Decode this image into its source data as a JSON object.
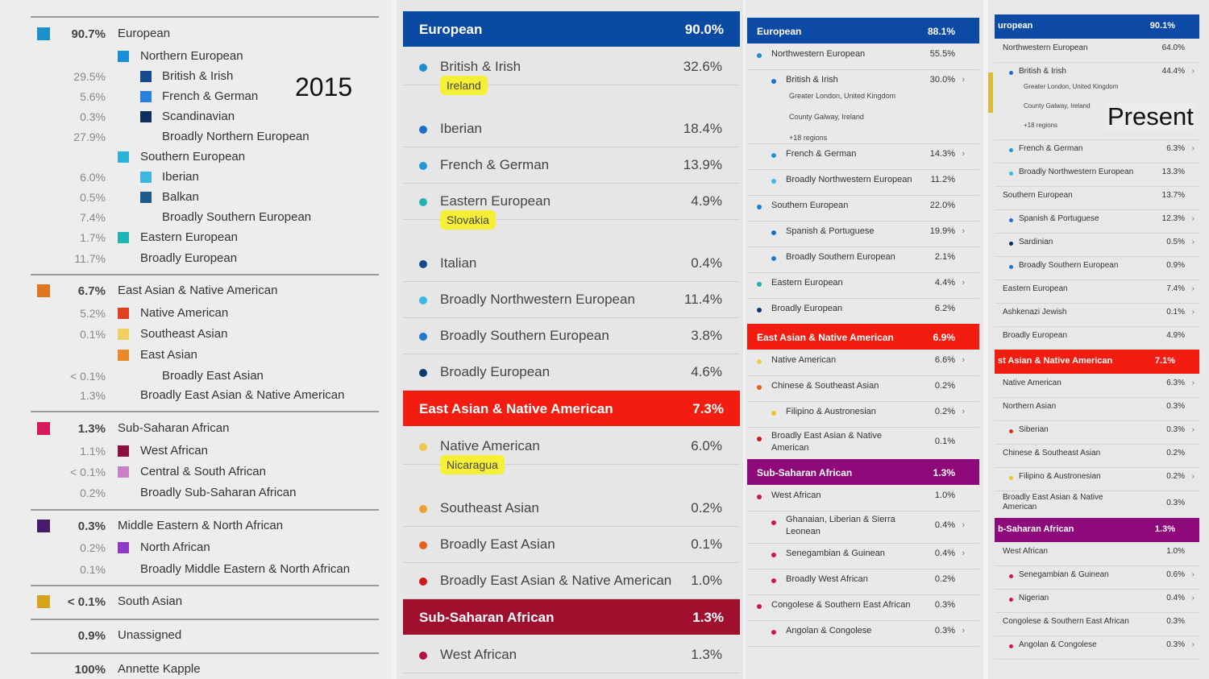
{
  "panel_2015": {
    "year": "2015",
    "rows": [
      {
        "pct": "90.7%",
        "label": "European",
        "color": "#1b93c8",
        "level": 0,
        "bold": true
      },
      {
        "pct": "",
        "label": "Northern European",
        "color": "#1b8fd6",
        "level": 1
      },
      {
        "pct": "29.5%",
        "label": "British & Irish",
        "color": "#174a8c",
        "level": 2
      },
      {
        "pct": "5.6%",
        "label": "French & German",
        "color": "#2a7de1",
        "level": 2
      },
      {
        "pct": "0.3%",
        "label": "Scandinavian",
        "color": "#0e2e5c",
        "level": 2
      },
      {
        "pct": "27.9%",
        "label": "Broadly Northern European",
        "color": "",
        "level": 3
      },
      {
        "pct": "",
        "label": "Southern European",
        "color": "#29b3d9",
        "level": 1
      },
      {
        "pct": "6.0%",
        "label": "Iberian",
        "color": "#3cb8e0",
        "level": 2
      },
      {
        "pct": "0.5%",
        "label": "Balkan",
        "color": "#1c5b8a",
        "level": 2
      },
      {
        "pct": "7.4%",
        "label": "Broadly Southern European",
        "color": "",
        "level": 3
      },
      {
        "pct": "1.7%",
        "label": "Eastern European",
        "color": "#1fb5b5",
        "level": 1
      },
      {
        "pct": "11.7%",
        "label": "Broadly European",
        "color": "",
        "level": 1
      },
      {
        "pct": "6.7%",
        "label": "East Asian & Native American",
        "color": "#e0761f",
        "level": 0,
        "bold": true
      },
      {
        "pct": "5.2%",
        "label": "Native American",
        "color": "#e04020",
        "level": 1
      },
      {
        "pct": "0.1%",
        "label": "Southeast Asian",
        "color": "#f0d060",
        "level": 1
      },
      {
        "pct": "",
        "label": "East Asian",
        "color": "#e88a28",
        "level": 1
      },
      {
        "pct": "< 0.1%",
        "label": "Broadly East Asian",
        "color": "",
        "level": 3
      },
      {
        "pct": "1.3%",
        "label": "Broadly East Asian & Native American",
        "color": "",
        "level": 1
      },
      {
        "pct": "1.3%",
        "label": "Sub-Saharan African",
        "color": "#d6195a",
        "level": 0,
        "bold": true
      },
      {
        "pct": "1.1%",
        "label": "West African",
        "color": "#8a1040",
        "level": 1
      },
      {
        "pct": "< 0.1%",
        "label": "Central & South African",
        "color": "#c880c8",
        "level": 1
      },
      {
        "pct": "0.2%",
        "label": "Broadly Sub-Saharan African",
        "color": "",
        "level": 1
      },
      {
        "pct": "0.3%",
        "label": "Middle Eastern & North African",
        "color": "#4a1a6a",
        "level": 0,
        "bold": true
      },
      {
        "pct": "0.2%",
        "label": "North African",
        "color": "#8e3ac8",
        "level": 1
      },
      {
        "pct": "0.1%",
        "label": "Broadly Middle Eastern & North African",
        "color": "",
        "level": 1
      },
      {
        "pct": "< 0.1%",
        "label": "South Asian",
        "color": "#d6a41c",
        "level": 0,
        "bold": true
      },
      {
        "pct": "0.9%",
        "label": "Unassigned",
        "color": "",
        "level": 0,
        "bold": true
      },
      {
        "pct": "100%",
        "label": "Annette Kapple",
        "color": "",
        "level": 0,
        "bold": true
      }
    ]
  },
  "panel_mid": {
    "items": [
      {
        "kind": "header",
        "label": "European",
        "value": "90.0%",
        "color": "#0b4aa2"
      },
      {
        "kind": "row",
        "label": "British & Irish",
        "value": "32.6%",
        "dot": "#1e8fd0"
      },
      {
        "kind": "highlight",
        "label": "Ireland"
      },
      {
        "kind": "row",
        "label": "Iberian",
        "value": "18.4%",
        "dot": "#1e6fc8"
      },
      {
        "kind": "row",
        "label": "French & German",
        "value": "13.9%",
        "dot": "#1f9ad6"
      },
      {
        "kind": "row",
        "label": "Eastern European",
        "value": "4.9%",
        "dot": "#20b0b0"
      },
      {
        "kind": "highlight",
        "label": "Slovakia"
      },
      {
        "kind": "row",
        "label": "Italian",
        "value": "0.4%",
        "dot": "#164a8c"
      },
      {
        "kind": "row",
        "label": "Broadly Northwestern European",
        "value": "11.4%",
        "dot": "#3ab8e8"
      },
      {
        "kind": "row",
        "label": "Broadly Southern European",
        "value": "3.8%",
        "dot": "#2076d0"
      },
      {
        "kind": "row",
        "label": "Broadly European",
        "value": "4.6%",
        "dot": "#0f3a70"
      },
      {
        "kind": "header",
        "label": "East Asian & Native American",
        "value": "7.3%",
        "color": "#f21c10"
      },
      {
        "kind": "row",
        "label": "Native American",
        "value": "6.0%",
        "dot": "#f0c850"
      },
      {
        "kind": "highlight",
        "label": "Nicaragua"
      },
      {
        "kind": "row",
        "label": "Southeast Asian",
        "value": "0.2%",
        "dot": "#f0a030"
      },
      {
        "kind": "row",
        "label": "Broadly East Asian",
        "value": "0.1%",
        "dot": "#e86020"
      },
      {
        "kind": "row",
        "label": "Broadly East Asian & Native American",
        "value": "1.0%",
        "dot": "#d01818"
      },
      {
        "kind": "header",
        "label": "Sub-Saharan African",
        "value": "1.3%",
        "color": "#a0102e"
      },
      {
        "kind": "row",
        "label": "West African",
        "value": "1.3%",
        "dot": "#b01040"
      }
    ]
  },
  "panel_3": {
    "items": [
      {
        "kind": "header",
        "label": "European",
        "value": "88.1%",
        "color": "#0c4aa6"
      },
      {
        "kind": "row",
        "label": "Northwestern European",
        "value": "55.5%",
        "dot": "#1e8fd0",
        "indent": 1
      },
      {
        "kind": "row",
        "label": "British & Irish",
        "value": "30.0%",
        "dot": "#1e6fc8",
        "indent": 2,
        "chevron": true,
        "subs": [
          "Greater London, United Kingdom",
          "County Galway, Ireland",
          "+18 regions"
        ]
      },
      {
        "kind": "row",
        "label": "French & German",
        "value": "14.3%",
        "dot": "#1f9ad6",
        "indent": 2,
        "chevron": true
      },
      {
        "kind": "row",
        "label": "Broadly Northwestern European",
        "value": "11.2%",
        "dot": "#3ab8e8",
        "indent": 2
      },
      {
        "kind": "row",
        "label": "Southern European",
        "value": "22.0%",
        "dot": "#2080d0",
        "indent": 1
      },
      {
        "kind": "row",
        "label": "Spanish & Portuguese",
        "value": "19.9%",
        "dot": "#1e6fc8",
        "indent": 2,
        "chevron": true
      },
      {
        "kind": "row",
        "label": "Broadly Southern European",
        "value": "2.1%",
        "dot": "#2076d0",
        "indent": 2
      },
      {
        "kind": "row",
        "label": "Eastern European",
        "value": "4.4%",
        "dot": "#20b0b0",
        "indent": 1,
        "chevron": true
      },
      {
        "kind": "row",
        "label": "Broadly European",
        "value": "6.2%",
        "dot": "#0f3a70",
        "indent": 1
      },
      {
        "kind": "header",
        "label": "East Asian & Native American",
        "value": "6.9%",
        "color": "#f21c10"
      },
      {
        "kind": "row",
        "label": "Native American",
        "value": "6.6%",
        "dot": "#f0c850",
        "indent": 1,
        "chevron": true
      },
      {
        "kind": "row",
        "label": "Chinese & Southeast Asian",
        "value": "0.2%",
        "dot": "#e86020",
        "indent": 1
      },
      {
        "kind": "row",
        "label": "Filipino & Austronesian",
        "value": "0.2%",
        "dot": "#f0c030",
        "indent": 2,
        "chevron": true
      },
      {
        "kind": "row",
        "label": "Broadly East Asian & Native American",
        "value": "0.1%",
        "dot": "#d01818",
        "indent": 1,
        "wrap": true
      },
      {
        "kind": "header",
        "label": "Sub-Saharan African",
        "value": "1.3%",
        "color": "#8e0a7a"
      },
      {
        "kind": "row",
        "label": "West African",
        "value": "1.0%",
        "dot": "#d01848",
        "indent": 1
      },
      {
        "kind": "row",
        "label": "Ghanaian, Liberian & Sierra Leonean",
        "value": "0.4%",
        "dot": "#d01848",
        "indent": 2,
        "chevron": true,
        "wrap": true
      },
      {
        "kind": "row",
        "label": "Senegambian & Guinean",
        "value": "0.4%",
        "dot": "#d01848",
        "indent": 2,
        "chevron": true
      },
      {
        "kind": "row",
        "label": "Broadly West African",
        "value": "0.2%",
        "dot": "#d01848",
        "indent": 2
      },
      {
        "kind": "row",
        "label": "Congolese & Southern East African",
        "value": "0.3%",
        "dot": "#d01848",
        "indent": 1
      },
      {
        "kind": "row",
        "label": "Angolan & Congolese",
        "value": "0.3%",
        "dot": "#d01848",
        "indent": 2,
        "chevron": true
      }
    ]
  },
  "panel_4": {
    "label": "Present",
    "items": [
      {
        "kind": "header",
        "label": "uropean",
        "value": "90.1%",
        "color": "#0c4aa6"
      },
      {
        "kind": "row",
        "label": "Northwestern European",
        "value": "64.0%",
        "indent": 1
      },
      {
        "kind": "row",
        "label": "British & Irish",
        "value": "44.4%",
        "dot": "#1e6fc8",
        "indent": 2,
        "chevron": true,
        "subs": [
          "Greater London, United Kingdom",
          "County Galway, Ireland",
          "+18 regions"
        ]
      },
      {
        "kind": "row",
        "label": "French & German",
        "value": "6.3%",
        "dot": "#1f9ad6",
        "indent": 2,
        "chevron": true
      },
      {
        "kind": "row",
        "label": "Broadly Northwestern European",
        "value": "13.3%",
        "dot": "#3ab8e8",
        "indent": 2
      },
      {
        "kind": "row",
        "label": "Southern European",
        "value": "13.7%",
        "indent": 1
      },
      {
        "kind": "row",
        "label": "Spanish & Portuguese",
        "value": "12.3%",
        "dot": "#1e6fc8",
        "indent": 2,
        "chevron": true
      },
      {
        "kind": "row",
        "label": "Sardinian",
        "value": "0.5%",
        "dot": "#0c2a5a",
        "indent": 2,
        "chevron": true
      },
      {
        "kind": "row",
        "label": "Broadly Southern European",
        "value": "0.9%",
        "dot": "#2076d0",
        "indent": 2
      },
      {
        "kind": "row",
        "label": "Eastern European",
        "value": "7.4%",
        "indent": 1,
        "chevron": true
      },
      {
        "kind": "row",
        "label": "Ashkenazi Jewish",
        "value": "0.1%",
        "indent": 1,
        "chevron": true
      },
      {
        "kind": "row",
        "label": "Broadly European",
        "value": "4.9%",
        "indent": 1
      },
      {
        "kind": "header",
        "label": "st Asian & Native American",
        "value": "7.1%",
        "color": "#f21c10"
      },
      {
        "kind": "row",
        "label": "Native American",
        "value": "6.3%",
        "indent": 1,
        "chevron": true
      },
      {
        "kind": "row",
        "label": "Northern Asian",
        "value": "0.3%",
        "indent": 1
      },
      {
        "kind": "row",
        "label": "Siberian",
        "value": "0.3%",
        "dot": "#e03020",
        "indent": 2,
        "chevron": true
      },
      {
        "kind": "row",
        "label": "Chinese & Southeast Asian",
        "value": "0.2%",
        "indent": 1
      },
      {
        "kind": "row",
        "label": "Filipino & Austronesian",
        "value": "0.2%",
        "dot": "#f0c030",
        "indent": 2,
        "chevron": true
      },
      {
        "kind": "row",
        "label": "Broadly East Asian & Native American",
        "value": "0.3%",
        "indent": 1,
        "wrap": true
      },
      {
        "kind": "header",
        "label": "b-Saharan African",
        "value": "1.3%",
        "color": "#8e0a7a"
      },
      {
        "kind": "row",
        "label": "West African",
        "value": "1.0%",
        "indent": 1
      },
      {
        "kind": "row",
        "label": "Senegambian & Guinean",
        "value": "0.6%",
        "dot": "#d01848",
        "indent": 2,
        "chevron": true
      },
      {
        "kind": "row",
        "label": "Nigerian",
        "value": "0.4%",
        "dot": "#d01848",
        "indent": 2,
        "chevron": true
      },
      {
        "kind": "row",
        "label": "Congolese & Southern East African",
        "value": "0.3%",
        "indent": 1
      },
      {
        "kind": "row",
        "label": "Angolan & Congolese",
        "value": "0.3%",
        "dot": "#d01848",
        "indent": 2,
        "chevron": true
      }
    ]
  }
}
